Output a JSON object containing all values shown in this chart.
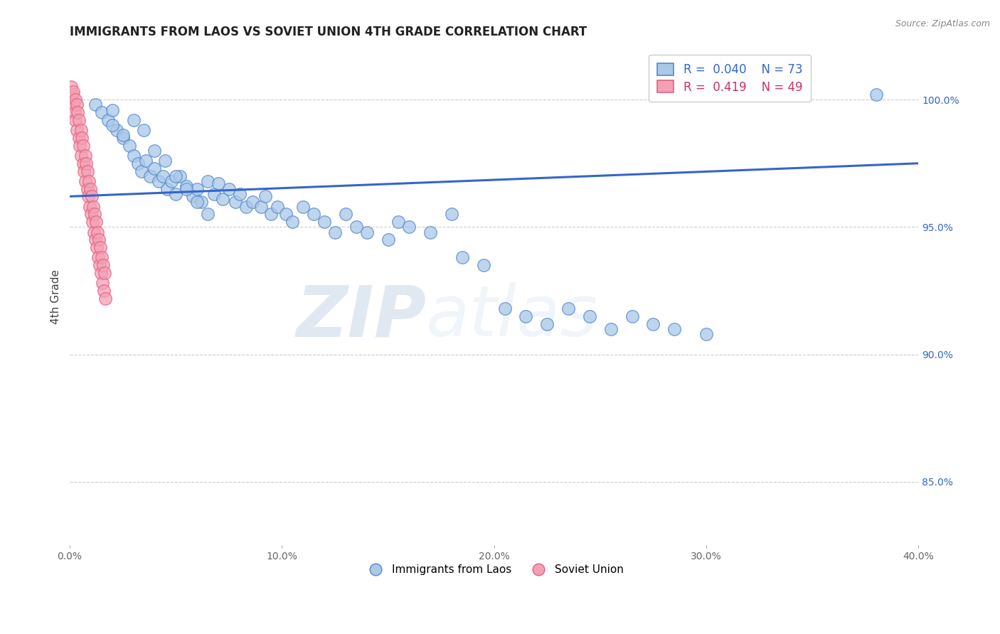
{
  "title": "IMMIGRANTS FROM LAOS VS SOVIET UNION 4TH GRADE CORRELATION CHART",
  "source": "Source: ZipAtlas.com",
  "ylabel": "4th Grade",
  "ytick_values": [
    85.0,
    90.0,
    95.0,
    100.0
  ],
  "ytick_labels": [
    "85.0%",
    "90.0%",
    "95.0%",
    "100.0%"
  ],
  "xlim": [
    0.0,
    40.0
  ],
  "ylim": [
    82.5,
    102.0
  ],
  "legend_blue_R": "R =  0.040",
  "legend_blue_N": "N = 73",
  "legend_pink_R": "R =  0.419",
  "legend_pink_N": "N = 49",
  "blue_color": "#aac8e8",
  "blue_edge": "#5588cc",
  "pink_color": "#f4a0b4",
  "pink_edge": "#e06080",
  "trendline_color": "#3366cc",
  "watermark_zip": "ZIP",
  "watermark_atlas": "atlas",
  "blue_x": [
    1.2,
    1.5,
    1.8,
    2.0,
    2.2,
    2.5,
    2.8,
    3.0,
    3.2,
    3.4,
    3.6,
    3.8,
    4.0,
    4.2,
    4.4,
    4.6,
    4.8,
    5.0,
    5.2,
    5.5,
    5.8,
    6.0,
    6.2,
    6.5,
    6.8,
    7.0,
    7.2,
    7.5,
    7.8,
    8.0,
    8.3,
    8.6,
    9.0,
    9.2,
    9.5,
    9.8,
    10.2,
    10.5,
    11.0,
    11.5,
    12.0,
    12.5,
    13.0,
    13.5,
    14.0,
    15.0,
    15.5,
    16.0,
    17.0,
    18.0,
    18.5,
    19.5,
    20.5,
    21.5,
    22.5,
    23.5,
    24.5,
    25.5,
    26.5,
    27.5,
    28.5,
    30.0,
    38.0,
    2.0,
    2.5,
    3.0,
    3.5,
    4.0,
    4.5,
    5.0,
    5.5,
    6.0,
    6.5
  ],
  "blue_y": [
    99.8,
    99.5,
    99.2,
    99.6,
    98.8,
    98.5,
    98.2,
    97.8,
    97.5,
    97.2,
    97.6,
    97.0,
    97.3,
    96.8,
    97.0,
    96.5,
    96.8,
    96.3,
    97.0,
    96.6,
    96.2,
    96.5,
    96.0,
    96.8,
    96.3,
    96.7,
    96.1,
    96.5,
    96.0,
    96.3,
    95.8,
    96.0,
    95.8,
    96.2,
    95.5,
    95.8,
    95.5,
    95.2,
    95.8,
    95.5,
    95.2,
    94.8,
    95.5,
    95.0,
    94.8,
    94.5,
    95.2,
    95.0,
    94.8,
    95.5,
    93.8,
    93.5,
    91.8,
    91.5,
    91.2,
    91.8,
    91.5,
    91.0,
    91.5,
    91.2,
    91.0,
    90.8,
    100.2,
    99.0,
    98.6,
    99.2,
    98.8,
    98.0,
    97.6,
    97.0,
    96.5,
    96.0,
    95.5
  ],
  "pink_x": [
    0.08,
    0.12,
    0.15,
    0.18,
    0.22,
    0.25,
    0.28,
    0.32,
    0.35,
    0.38,
    0.42,
    0.45,
    0.48,
    0.52,
    0.55,
    0.58,
    0.62,
    0.65,
    0.68,
    0.72,
    0.75,
    0.78,
    0.82,
    0.85,
    0.88,
    0.92,
    0.95,
    0.98,
    1.02,
    1.05,
    1.08,
    1.12,
    1.15,
    1.18,
    1.22,
    1.25,
    1.28,
    1.32,
    1.35,
    1.38,
    1.42,
    1.45,
    1.48,
    1.52,
    1.55,
    1.58,
    1.62,
    1.65,
    1.68
  ],
  "pink_y": [
    100.5,
    100.2,
    99.8,
    100.3,
    99.5,
    100.0,
    99.2,
    99.8,
    98.8,
    99.5,
    98.5,
    99.2,
    98.2,
    98.8,
    97.8,
    98.5,
    97.5,
    98.2,
    97.2,
    97.8,
    96.8,
    97.5,
    96.5,
    97.2,
    96.2,
    96.8,
    95.8,
    96.5,
    95.5,
    96.2,
    95.2,
    95.8,
    94.8,
    95.5,
    94.5,
    95.2,
    94.2,
    94.8,
    93.8,
    94.5,
    93.5,
    94.2,
    93.2,
    93.8,
    92.8,
    93.5,
    92.5,
    93.2,
    92.2
  ],
  "trendline_x": [
    0.0,
    40.0
  ],
  "trendline_y": [
    96.2,
    97.5
  ]
}
